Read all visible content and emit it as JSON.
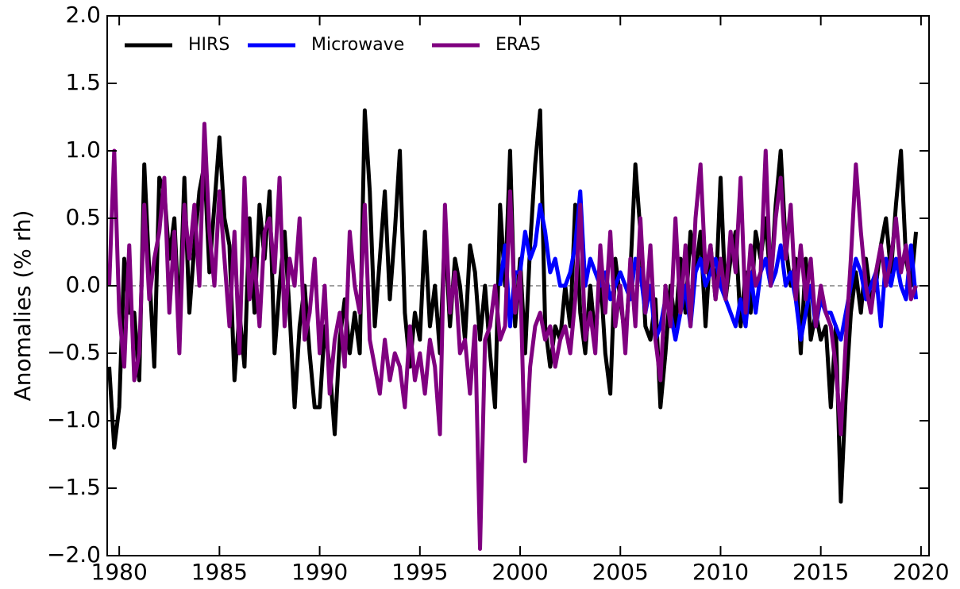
{
  "chart_data": {
    "type": "line",
    "y_label": "Anomalies (% rh)",
    "xlim": [
      1979.4,
      2020.4
    ],
    "ylim": [
      -2.0,
      2.0
    ],
    "xticks": [
      1980,
      1985,
      1990,
      1995,
      2000,
      2005,
      2010,
      2015,
      2020
    ],
    "yticks": [
      {
        "value": -2.0,
        "label": "−2.0"
      },
      {
        "value": -1.5,
        "label": "−1.5"
      },
      {
        "value": -1.0,
        "label": "−1.0"
      },
      {
        "value": -0.5,
        "label": "−0.5"
      },
      {
        "value": 0.0,
        "label": "0.0"
      },
      {
        "value": 0.5,
        "label": "0.5"
      },
      {
        "value": 1.0,
        "label": "1.0"
      },
      {
        "value": 1.5,
        "label": "1.5"
      },
      {
        "value": 2.0,
        "label": "2.0"
      }
    ],
    "reference_line": 0,
    "legend": "upper left",
    "x": [
      1979.5,
      1979.75,
      1980,
      1980.25,
      1980.5,
      1980.75,
      1981,
      1981.25,
      1981.5,
      1981.75,
      1982,
      1982.25,
      1982.5,
      1982.75,
      1983,
      1983.25,
      1983.5,
      1983.75,
      1984,
      1984.25,
      1984.5,
      1984.75,
      1985,
      1985.25,
      1985.5,
      1985.75,
      1986,
      1986.25,
      1986.5,
      1986.75,
      1987,
      1987.25,
      1987.5,
      1987.75,
      1988,
      1988.25,
      1988.5,
      1988.75,
      1989,
      1989.25,
      1989.5,
      1989.75,
      1990,
      1990.25,
      1990.5,
      1990.75,
      1991,
      1991.25,
      1991.5,
      1991.75,
      1992,
      1992.25,
      1992.5,
      1992.75,
      1993,
      1993.25,
      1993.5,
      1993.75,
      1994,
      1994.25,
      1994.5,
      1994.75,
      1995,
      1995.25,
      1995.5,
      1995.75,
      1996,
      1996.25,
      1996.5,
      1996.75,
      1997,
      1997.25,
      1997.5,
      1997.75,
      1998,
      1998.25,
      1998.5,
      1998.75,
      1999,
      1999.25,
      1999.5,
      1999.75,
      2000,
      2000.25,
      2000.5,
      2000.75,
      2001,
      2001.25,
      2001.5,
      2001.75,
      2002,
      2002.25,
      2002.5,
      2002.75,
      2003,
      2003.25,
      2003.5,
      2003.75,
      2004,
      2004.25,
      2004.5,
      2004.75,
      2005,
      2005.25,
      2005.5,
      2005.75,
      2006,
      2006.25,
      2006.5,
      2006.75,
      2007,
      2007.25,
      2007.5,
      2007.75,
      2008,
      2008.25,
      2008.5,
      2008.75,
      2009,
      2009.25,
      2009.5,
      2009.75,
      2010,
      2010.25,
      2010.5,
      2010.75,
      2011,
      2011.25,
      2011.5,
      2011.75,
      2012,
      2012.25,
      2012.5,
      2012.75,
      2013,
      2013.25,
      2013.5,
      2013.75,
      2014,
      2014.25,
      2014.5,
      2014.75,
      2015,
      2015.25,
      2015.5,
      2015.75,
      2016,
      2016.25,
      2016.5,
      2016.75,
      2017,
      2017.25,
      2017.5,
      2017.75,
      2018,
      2018.25,
      2018.5,
      2018.75,
      2019,
      2019.25,
      2019.5,
      2019.75
    ],
    "series": [
      {
        "name": "HIRS",
        "color": "#000000",
        "values": [
          -0.6,
          -1.2,
          -0.9,
          0.2,
          -0.2,
          -0.2,
          -0.7,
          0.9,
          0.1,
          -0.6,
          0.8,
          0.7,
          0.2,
          0.5,
          -0.3,
          0.8,
          -0.2,
          0.3,
          0.7,
          0.9,
          0.1,
          0.6,
          1.1,
          0.5,
          0.3,
          -0.7,
          -0.2,
          -0.6,
          0.5,
          -0.2,
          0.6,
          0.2,
          0.7,
          -0.5,
          0.0,
          0.4,
          -0.2,
          -0.9,
          -0.3,
          0.0,
          -0.5,
          -0.9,
          -0.9,
          -0.3,
          -0.6,
          -1.1,
          -0.4,
          -0.1,
          -0.5,
          -0.2,
          -0.5,
          1.3,
          0.7,
          -0.3,
          0.2,
          0.7,
          -0.1,
          0.4,
          1.0,
          -0.2,
          -0.6,
          -0.2,
          -0.4,
          0.4,
          -0.3,
          0.0,
          -0.5,
          0.4,
          -0.3,
          0.2,
          0.0,
          -0.4,
          0.3,
          0.1,
          -0.4,
          0.0,
          -0.5,
          -0.9,
          0.6,
          0.0,
          1.0,
          -0.3,
          0.2,
          -0.5,
          0.3,
          0.9,
          1.3,
          -0.3,
          -0.6,
          -0.3,
          -0.4,
          0.0,
          -0.3,
          0.6,
          -0.2,
          -0.5,
          0.0,
          -0.4,
          0.1,
          -0.5,
          -0.8,
          0.2,
          -0.1,
          -0.4,
          0.1,
          0.9,
          0.4,
          -0.3,
          -0.4,
          -0.1,
          -0.9,
          -0.5,
          0.0,
          -0.3,
          0.2,
          -0.2,
          0.4,
          0.1,
          0.4,
          -0.3,
          0.3,
          -0.1,
          0.8,
          -0.1,
          0.2,
          0.4,
          -0.3,
          0.1,
          -0.2,
          0.4,
          0.2,
          0.5,
          0.0,
          0.6,
          1.0,
          0.3,
          0.0,
          0.2,
          -0.5,
          0.2,
          -0.4,
          -0.2,
          -0.4,
          -0.3,
          -0.9,
          -0.3,
          -1.6,
          -0.8,
          -0.2,
          0.1,
          -0.2,
          0.2,
          -0.1,
          0.0,
          0.3,
          0.5,
          0.1,
          0.6,
          1.0,
          0.2,
          0.0,
          0.4
        ]
      },
      {
        "name": "Microwave",
        "color": "#0000ff",
        "x": [
          1999,
          1999.25,
          1999.5,
          1999.75,
          2000,
          2000.25,
          2000.5,
          2000.75,
          2001,
          2001.25,
          2001.5,
          2001.75,
          2002,
          2002.25,
          2002.5,
          2002.75,
          2003,
          2003.25,
          2003.5,
          2003.75,
          2004,
          2004.25,
          2004.5,
          2004.75,
          2005,
          2005.25,
          2005.5,
          2005.75,
          2006,
          2006.25,
          2006.5,
          2006.75,
          2007,
          2007.25,
          2007.5,
          2007.75,
          2008,
          2008.25,
          2008.5,
          2008.75,
          2009,
          2009.25,
          2009.5,
          2009.75,
          2010,
          2010.25,
          2010.5,
          2010.75,
          2011,
          2011.25,
          2011.5,
          2011.75,
          2012,
          2012.25,
          2012.5,
          2012.75,
          2013,
          2013.25,
          2013.5,
          2013.75,
          2014,
          2014.25,
          2014.5,
          2014.75,
          2015,
          2015.25,
          2015.5,
          2015.75,
          2016,
          2016.25,
          2016.5,
          2016.75,
          2017,
          2017.25,
          2017.5,
          2017.75,
          2018,
          2018.25,
          2018.5,
          2018.75,
          2019,
          2019.25,
          2019.5,
          2019.75
        ],
        "values": [
          0.0,
          0.3,
          -0.3,
          0.1,
          0.1,
          0.4,
          0.2,
          0.3,
          0.6,
          0.4,
          0.1,
          0.2,
          0.0,
          0.0,
          0.1,
          0.3,
          0.7,
          0.0,
          0.2,
          0.1,
          0.0,
          0.1,
          -0.1,
          0.0,
          0.1,
          0.0,
          -0.1,
          0.2,
          0.1,
          -0.2,
          0.0,
          -0.4,
          -0.3,
          -0.1,
          -0.2,
          -0.4,
          -0.2,
          0.0,
          -0.3,
          0.1,
          0.2,
          0.0,
          0.1,
          0.2,
          0.0,
          -0.1,
          -0.2,
          -0.3,
          -0.1,
          -0.3,
          0.1,
          -0.2,
          0.1,
          0.2,
          0.0,
          0.1,
          0.3,
          0.0,
          0.1,
          -0.1,
          -0.4,
          -0.2,
          0.0,
          -0.3,
          -0.1,
          -0.2,
          -0.2,
          -0.3,
          -0.4,
          -0.2,
          0.0,
          0.2,
          0.1,
          -0.1,
          0.0,
          0.1,
          -0.3,
          0.2,
          0.0,
          0.2,
          0.0,
          -0.1,
          0.3,
          -0.1
        ]
      },
      {
        "name": "ERA5",
        "color": "#800080",
        "values": [
          0.0,
          1.0,
          -0.2,
          -0.6,
          0.3,
          -0.7,
          -0.5,
          0.6,
          -0.1,
          0.2,
          0.4,
          0.8,
          -0.2,
          0.4,
          -0.5,
          0.6,
          0.2,
          0.6,
          0.0,
          1.2,
          0.4,
          0.0,
          0.7,
          0.2,
          -0.3,
          0.4,
          -0.5,
          0.8,
          -0.1,
          0.2,
          -0.3,
          0.4,
          0.5,
          0.1,
          0.8,
          -0.3,
          0.2,
          0.0,
          0.5,
          -0.4,
          -0.2,
          0.2,
          -0.5,
          0.0,
          -0.8,
          -0.4,
          -0.2,
          -0.6,
          0.4,
          0.0,
          -0.2,
          0.6,
          -0.4,
          -0.6,
          -0.8,
          -0.4,
          -0.7,
          -0.5,
          -0.6,
          -0.9,
          -0.3,
          -0.7,
          -0.5,
          -0.8,
          -0.4,
          -0.6,
          -1.1,
          0.6,
          -0.2,
          0.1,
          -0.5,
          -0.4,
          -0.8,
          -0.3,
          -1.95,
          -0.4,
          -0.3,
          0.0,
          -0.4,
          -0.3,
          0.7,
          -0.2,
          0.1,
          -1.3,
          -0.6,
          -0.3,
          -0.2,
          -0.4,
          -0.3,
          -0.6,
          -0.4,
          -0.3,
          -0.5,
          -0.1,
          0.6,
          -0.4,
          -0.2,
          -0.5,
          0.3,
          -0.2,
          0.4,
          -0.3,
          0.0,
          -0.5,
          0.2,
          -0.3,
          0.5,
          -0.2,
          0.3,
          -0.4,
          -0.7,
          0.0,
          -0.3,
          0.5,
          -0.2,
          0.3,
          -0.3,
          0.5,
          0.9,
          0.1,
          0.3,
          -0.1,
          0.2,
          -0.1,
          0.4,
          0.1,
          0.8,
          -0.2,
          0.3,
          0.0,
          0.1,
          1.0,
          0.0,
          0.5,
          0.8,
          0.2,
          0.6,
          -0.1,
          0.3,
          -0.1,
          0.2,
          -0.3,
          0.0,
          -0.2,
          -0.3,
          -0.6,
          -1.1,
          -0.4,
          0.2,
          0.9,
          0.4,
          0.0,
          -0.2,
          0.1,
          0.3,
          0.0,
          0.2,
          0.5,
          0.1,
          0.3,
          -0.1,
          0.0
        ]
      }
    ]
  }
}
